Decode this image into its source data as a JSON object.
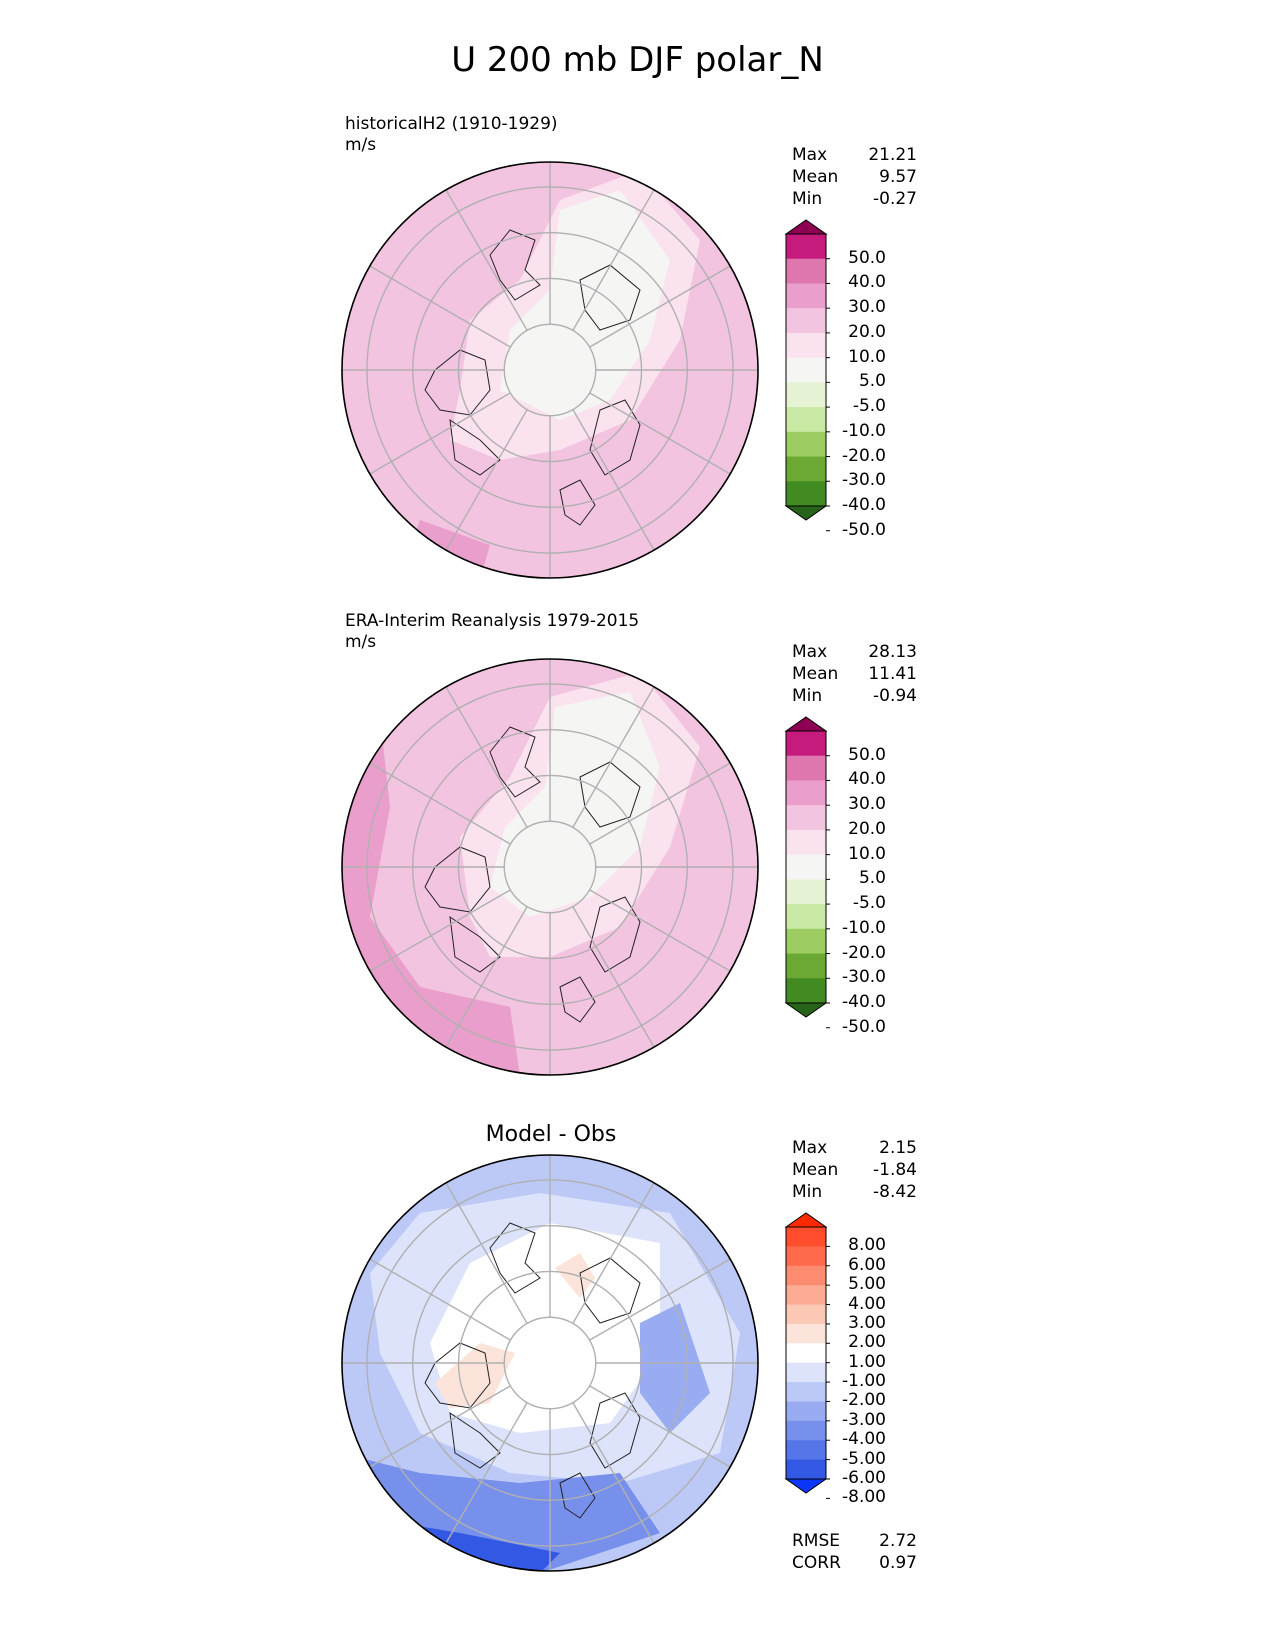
{
  "title": "U 200 mb DJF polar_N",
  "panels": [
    {
      "label": "historicalH2 (1910-1929)",
      "units": "m/s",
      "stats": [
        {
          "name": "Max",
          "value": "21.21"
        },
        {
          "name": "Mean",
          "value": "9.57"
        },
        {
          "name": "Min",
          "value": "-0.27"
        }
      ],
      "colorbar": {
        "ticks": [
          "50.0",
          "40.0",
          "30.0",
          "20.0",
          "10.0",
          "5.0",
          "-5.0",
          "-10.0",
          "-20.0",
          "-30.0",
          "-40.0",
          "-50.0"
        ],
        "colors": [
          "#8e0152",
          "#c51b7d",
          "#de77ae",
          "#ea9ecb",
          "#f3c4e0",
          "#fbe2ef",
          "#f5f5f4",
          "#e6f4d5",
          "#c9e9a4",
          "#9ccc62",
          "#6ba834",
          "#428a22",
          "#276419"
        ]
      }
    },
    {
      "label": "ERA-Interim Reanalysis 1979-2015",
      "units": "m/s",
      "stats": [
        {
          "name": "Max",
          "value": "28.13"
        },
        {
          "name": "Mean",
          "value": "11.41"
        },
        {
          "name": "Min",
          "value": "-0.94"
        }
      ],
      "colorbar": {
        "ticks": [
          "50.0",
          "40.0",
          "30.0",
          "20.0",
          "10.0",
          "5.0",
          "-5.0",
          "-10.0",
          "-20.0",
          "-30.0",
          "-40.0",
          "-50.0"
        ],
        "colors": [
          "#8e0152",
          "#c51b7d",
          "#de77ae",
          "#ea9ecb",
          "#f3c4e0",
          "#fbe2ef",
          "#f5f5f4",
          "#e6f4d5",
          "#c9e9a4",
          "#9ccc62",
          "#6ba834",
          "#428a22",
          "#276419"
        ]
      }
    },
    {
      "label": "Model - Obs",
      "stats": [
        {
          "name": "Max",
          "value": "2.15"
        },
        {
          "name": "Mean",
          "value": "-1.84"
        },
        {
          "name": "Min",
          "value": "-8.42"
        }
      ],
      "extra_stats": [
        {
          "name": "RMSE",
          "value": "2.72"
        },
        {
          "name": "CORR",
          "value": "0.97"
        }
      ],
      "colorbar": {
        "ticks": [
          "8.00",
          "6.00",
          "5.00",
          "4.00",
          "3.00",
          "2.00",
          "1.00",
          "-1.00",
          "-2.00",
          "-3.00",
          "-4.00",
          "-5.00",
          "-6.00",
          "-8.00"
        ],
        "colors": [
          "#ff2a00",
          "#ff4d2e",
          "#fe6a4c",
          "#fd8b6f",
          "#fcab95",
          "#fdc9b7",
          "#fde4da",
          "#ffffff",
          "#dde3fb",
          "#bcc9f6",
          "#9aacf1",
          "#7790ec",
          "#5575e8",
          "#3258e4",
          "#0d36fd"
        ]
      }
    }
  ],
  "chart_data": {
    "type": "heatmap",
    "projection": "north polar stereographic",
    "variable": "U 200 mb",
    "season": "DJF",
    "region": "polar_N",
    "grid": true,
    "legend_placement": "right"
  }
}
